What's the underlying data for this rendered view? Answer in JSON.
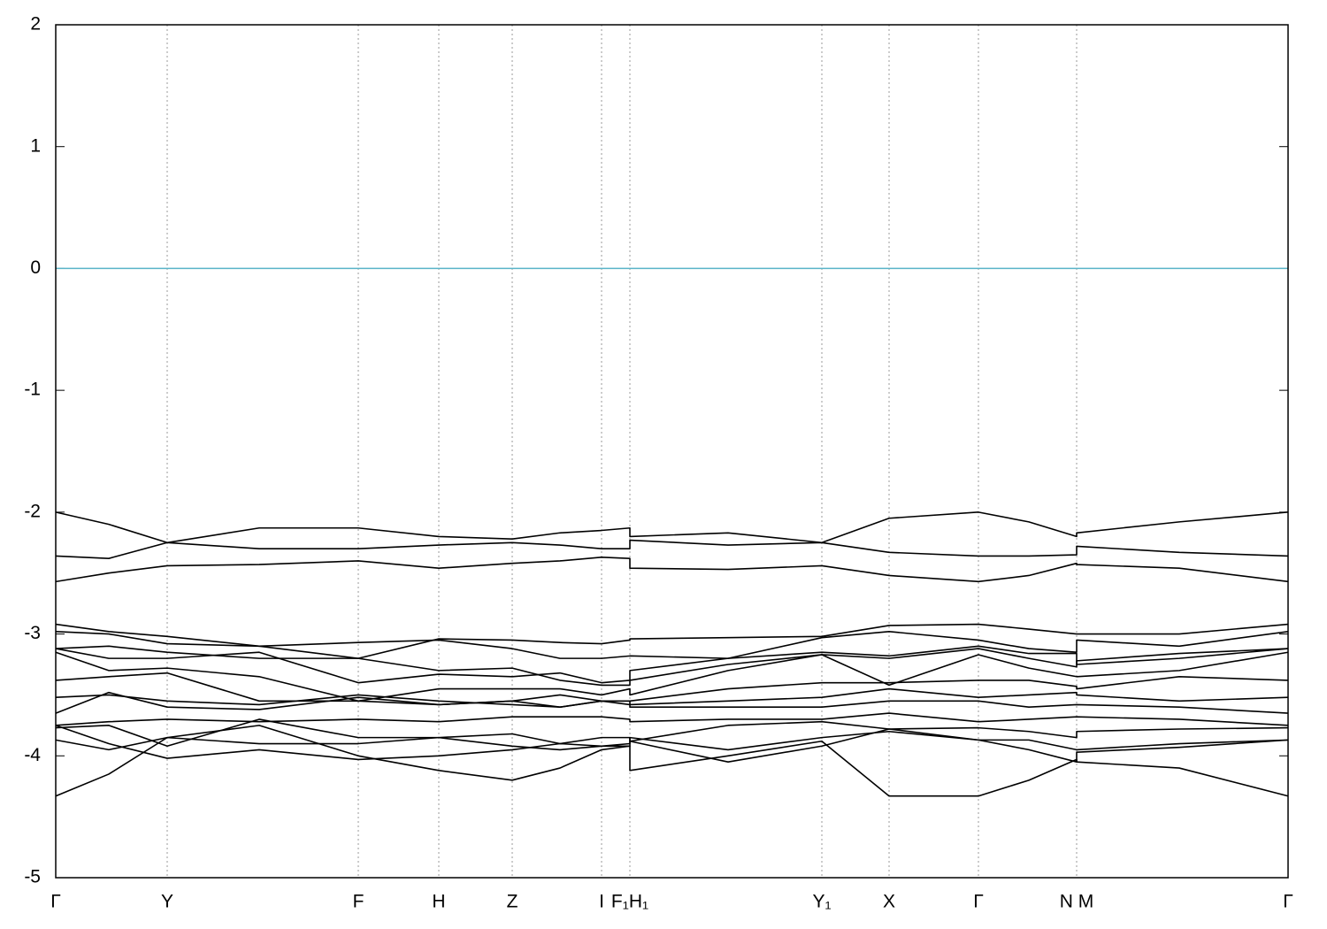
{
  "chart_data": {
    "type": "line",
    "x": [
      0,
      0.6,
      1.26,
      2.3,
      3.42,
      4.33,
      5.16,
      5.7,
      6.17,
      6.49,
      6.49,
      7.6,
      8.66,
      9.42,
      10.43,
      11.0,
      11.54,
      11.54,
      12.7,
      13.93
    ],
    "line_color": "#000000",
    "hline": 0,
    "hline_color": "#5ab4c8",
    "xlim": [
      0,
      13.93
    ],
    "xticks": [
      {
        "value": 0,
        "label": "Γ"
      },
      {
        "value": 1.26,
        "label": "Y"
      },
      {
        "value": 3.42,
        "label": "F"
      },
      {
        "value": 4.33,
        "label": "H"
      },
      {
        "value": 5.16,
        "label": "Z"
      },
      {
        "value": 6.17,
        "label": "I"
      },
      {
        "value": 6.49,
        "label": "F₁H₁"
      },
      {
        "value": 8.66,
        "label": "Y₁"
      },
      {
        "value": 9.42,
        "label": "X"
      },
      {
        "value": 10.43,
        "label": "Γ"
      },
      {
        "value": 11.54,
        "label": "N M"
      },
      {
        "value": 13.93,
        "label": "Γ"
      }
    ],
    "ylim": [
      -5,
      2
    ],
    "yticks": [
      -5,
      -4,
      -3,
      -2,
      -1,
      0,
      1,
      2
    ],
    "xgrid": true,
    "series": [
      {
        "values": [
          -2.0,
          -2.1,
          -2.25,
          -2.13,
          -2.13,
          -2.2,
          -2.22,
          -2.17,
          -2.15,
          -2.13,
          -2.2,
          -2.17,
          -2.25,
          -2.05,
          -2.0,
          -2.08,
          -2.2,
          -2.17,
          -2.08,
          -2.0
        ]
      },
      {
        "values": [
          -2.36,
          -2.38,
          -2.25,
          -2.3,
          -2.3,
          -2.27,
          -2.25,
          -2.27,
          -2.3,
          -2.3,
          -2.23,
          -2.27,
          -2.25,
          -2.33,
          -2.36,
          -2.36,
          -2.35,
          -2.28,
          -2.33,
          -2.36
        ]
      },
      {
        "values": [
          -2.57,
          -2.5,
          -2.44,
          -2.43,
          -2.4,
          -2.46,
          -2.42,
          -2.4,
          -2.37,
          -2.38,
          -2.46,
          -2.47,
          -2.44,
          -2.52,
          -2.57,
          -2.52,
          -2.42,
          -2.43,
          -2.46,
          -2.57
        ]
      },
      {
        "values": [
          -2.92,
          -2.98,
          -3.02,
          -3.1,
          -3.2,
          -3.04,
          -3.05,
          -3.07,
          -3.08,
          -3.05,
          -3.04,
          -3.03,
          -3.02,
          -2.93,
          -2.92,
          -2.96,
          -3.0,
          -3.0,
          -3.0,
          -2.92
        ]
      },
      {
        "values": [
          -2.98,
          -3.0,
          -3.08,
          -3.1,
          -3.07,
          -3.05,
          -3.12,
          -3.2,
          -3.2,
          -3.18,
          -3.18,
          -3.2,
          -3.03,
          -2.98,
          -3.05,
          -3.12,
          -3.15,
          -3.05,
          -3.1,
          -2.98
        ]
      },
      {
        "values": [
          -3.12,
          -3.1,
          -3.15,
          -3.2,
          -3.2,
          -3.3,
          -3.28,
          -3.38,
          -3.42,
          -3.42,
          -3.3,
          -3.2,
          -3.15,
          -3.18,
          -3.1,
          -3.16,
          -3.16,
          -3.25,
          -3.2,
          -3.12
        ]
      },
      {
        "values": [
          -3.12,
          -3.2,
          -3.2,
          -3.15,
          -3.4,
          -3.33,
          -3.35,
          -3.32,
          -3.4,
          -3.38,
          -3.38,
          -3.25,
          -3.17,
          -3.2,
          -3.12,
          -3.2,
          -3.27,
          -3.22,
          -3.16,
          -3.12
        ]
      },
      {
        "values": [
          -3.15,
          -3.3,
          -3.28,
          -3.35,
          -3.55,
          -3.45,
          -3.45,
          -3.45,
          -3.5,
          -3.45,
          -3.5,
          -3.3,
          -3.17,
          -3.42,
          -3.17,
          -3.28,
          -3.35,
          -3.35,
          -3.3,
          -3.15
        ]
      },
      {
        "values": [
          -3.38,
          -3.35,
          -3.32,
          -3.55,
          -3.55,
          -3.58,
          -3.55,
          -3.5,
          -3.55,
          -3.55,
          -3.55,
          -3.45,
          -3.4,
          -3.4,
          -3.38,
          -3.38,
          -3.43,
          -3.45,
          -3.35,
          -3.38
        ]
      },
      {
        "values": [
          -3.52,
          -3.5,
          -3.55,
          -3.58,
          -3.5,
          -3.55,
          -3.58,
          -3.6,
          -3.55,
          -3.55,
          -3.58,
          -3.55,
          -3.52,
          -3.45,
          -3.52,
          -3.5,
          -3.48,
          -3.5,
          -3.55,
          -3.52
        ]
      },
      {
        "values": [
          -3.65,
          -3.48,
          -3.6,
          -3.62,
          -3.52,
          -3.58,
          -3.55,
          -3.6,
          -3.55,
          -3.58,
          -3.6,
          -3.6,
          -3.6,
          -3.55,
          -3.55,
          -3.6,
          -3.58,
          -3.58,
          -3.6,
          -3.65
        ]
      },
      {
        "values": [
          -3.75,
          -3.72,
          -3.7,
          -3.72,
          -3.7,
          -3.72,
          -3.68,
          -3.68,
          -3.68,
          -3.7,
          -3.72,
          -3.7,
          -3.7,
          -3.65,
          -3.72,
          -3.7,
          -3.68,
          -3.68,
          -3.7,
          -3.75
        ]
      },
      {
        "values": [
          -3.77,
          -3.75,
          -3.92,
          -3.7,
          -3.85,
          -3.85,
          -3.82,
          -3.9,
          -3.85,
          -3.85,
          -3.88,
          -3.75,
          -3.72,
          -3.78,
          -3.77,
          -3.8,
          -3.85,
          -3.8,
          -3.78,
          -3.77
        ]
      },
      {
        "values": [
          -3.87,
          -3.95,
          -3.85,
          -3.9,
          -3.9,
          -3.85,
          -3.92,
          -3.95,
          -3.92,
          -3.9,
          -3.85,
          -3.95,
          -3.85,
          -3.8,
          -3.87,
          -3.87,
          -3.95,
          -3.95,
          -3.9,
          -3.87
        ]
      },
      {
        "values": [
          -3.75,
          -3.9,
          -4.02,
          -3.95,
          -4.03,
          -4.0,
          -3.95,
          -3.9,
          -3.92,
          -3.92,
          -3.88,
          -4.05,
          -3.92,
          -3.78,
          -3.87,
          -3.95,
          -4.05,
          -3.97,
          -3.93,
          -3.87
        ]
      },
      {
        "values": [
          -4.33,
          -4.15,
          -3.85,
          -3.75,
          -4.0,
          -4.12,
          -4.2,
          -4.1,
          -3.95,
          -3.92,
          -4.12,
          -4.0,
          -3.88,
          -4.33,
          -4.33,
          -4.2,
          -4.03,
          -4.05,
          -4.1,
          -4.33
        ]
      }
    ]
  }
}
